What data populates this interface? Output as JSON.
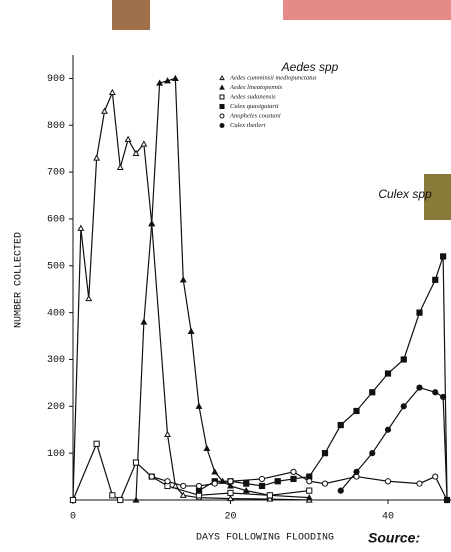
{
  "chart_data": {
    "type": "line",
    "y_label": "NUMBER COLLECTED",
    "x_label": "DAYS FOLLOWING FLOODING",
    "annotations": [
      "Aedes spp",
      "Culex spp",
      "Source:"
    ],
    "xlim": [
      0,
      48
    ],
    "ylim": [
      0,
      950
    ],
    "xticks": [
      0,
      20,
      40
    ],
    "yticks": [
      100,
      200,
      300,
      400,
      500,
      600,
      700,
      800,
      900
    ],
    "grid": false,
    "series": [
      {
        "name": "Aedes cumminsii mediopunctatus",
        "color": "#111111",
        "marker": "triangle-open",
        "x": [
          0,
          1,
          2,
          3,
          4,
          5,
          6,
          7,
          8,
          9,
          10,
          12,
          13,
          14,
          16,
          20,
          25,
          30
        ],
        "values": [
          0,
          580,
          430,
          730,
          830,
          870,
          710,
          770,
          740,
          760,
          590,
          140,
          30,
          10,
          5,
          3,
          2,
          0
        ]
      },
      {
        "name": "Aedes lineatopennis",
        "color": "#111111",
        "marker": "triangle",
        "x": [
          8,
          9,
          10,
          11,
          12,
          13,
          14,
          15,
          16,
          17,
          18,
          19,
          20,
          22,
          25,
          30
        ],
        "values": [
          0,
          380,
          590,
          890,
          895,
          900,
          470,
          360,
          200,
          110,
          60,
          40,
          30,
          20,
          10,
          5
        ]
      },
      {
        "name": "Aedes sudanensis",
        "color": "#111111",
        "marker": "square-open",
        "x": [
          0,
          3,
          5,
          6,
          8,
          10,
          12,
          16,
          20,
          25,
          30
        ],
        "values": [
          0,
          120,
          10,
          0,
          80,
          50,
          30,
          10,
          15,
          10,
          20
        ]
      },
      {
        "name": "Culex quasiguiarti",
        "color": "#111111",
        "marker": "square",
        "x": [
          16,
          18,
          20,
          22,
          24,
          26,
          28,
          30,
          32,
          34,
          36,
          38,
          40,
          42,
          44,
          46,
          47,
          47.5
        ],
        "values": [
          20,
          40,
          40,
          35,
          30,
          40,
          45,
          50,
          100,
          160,
          190,
          230,
          270,
          300,
          400,
          470,
          520,
          0
        ]
      },
      {
        "name": "Anopheles coustani",
        "color": "#111111",
        "marker": "circle-open",
        "x": [
          10,
          12,
          14,
          16,
          18,
          20,
          24,
          28,
          30,
          32,
          36,
          40,
          44,
          46,
          47.5
        ],
        "values": [
          50,
          40,
          30,
          30,
          35,
          40,
          45,
          60,
          40,
          35,
          50,
          40,
          35,
          50,
          0
        ]
      },
      {
        "name": "Culex theileri",
        "color": "#111111",
        "marker": "circle",
        "x": [
          34,
          36,
          38,
          40,
          42,
          44,
          46,
          47,
          47.5
        ],
        "values": [
          20,
          60,
          100,
          150,
          200,
          240,
          230,
          220,
          0
        ]
      }
    ]
  }
}
